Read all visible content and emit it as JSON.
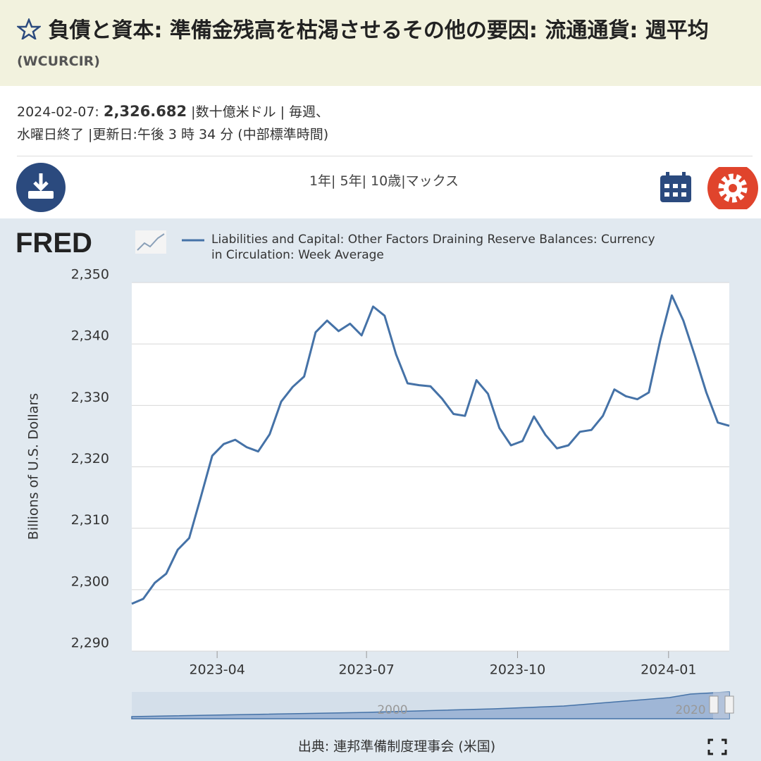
{
  "header": {
    "title": "負債と資本: 準備金残高を枯渇させるその他の要因: 流通通貨: 週平均",
    "code": "(WCURCIR)"
  },
  "meta": {
    "date": "2024-02-07:",
    "value": "2,326.682",
    "line1_rest": "|数十億米ドル | 毎週、",
    "line2": "水曜日終了 |更新日:午後 3 時 34 分 (中部標準時間)"
  },
  "toolbar": {
    "ranges": "1年| 5年| 10歳|マックス"
  },
  "logo": "FRED",
  "chart_data": {
    "type": "line",
    "y_label": "Billions of U.S. Dollars",
    "x": [
      "2023-02-08",
      "2023-02-15",
      "2023-02-22",
      "2023-03-01",
      "2023-03-08",
      "2023-03-15",
      "2023-03-22",
      "2023-03-29",
      "2023-04-05",
      "2023-04-12",
      "2023-04-19",
      "2023-04-26",
      "2023-05-03",
      "2023-05-10",
      "2023-05-17",
      "2023-05-24",
      "2023-05-31",
      "2023-06-07",
      "2023-06-14",
      "2023-06-21",
      "2023-06-28",
      "2023-07-05",
      "2023-07-12",
      "2023-07-19",
      "2023-07-26",
      "2023-08-02",
      "2023-08-09",
      "2023-08-16",
      "2023-08-23",
      "2023-08-30",
      "2023-09-06",
      "2023-09-13",
      "2023-09-20",
      "2023-09-27",
      "2023-10-04",
      "2023-10-11",
      "2023-10-18",
      "2023-10-25",
      "2023-11-01",
      "2023-11-08",
      "2023-11-15",
      "2023-11-22",
      "2023-11-29",
      "2023-12-06",
      "2023-12-13",
      "2023-12-20",
      "2023-12-27",
      "2024-01-03",
      "2024-01-10",
      "2024-01-17",
      "2024-01-24",
      "2024-01-31",
      "2024-02-07"
    ],
    "series": [
      {
        "name": "Liabilities and Capital: Other Factors Draining Reserve Balances: Currency in Circulation: Week Average",
        "color": "#4572a7",
        "values": [
          2297.7,
          2298.5,
          2301.1,
          2302.6,
          2306.5,
          2308.4,
          2315.0,
          2321.8,
          2323.7,
          2324.4,
          2323.2,
          2322.5,
          2325.3,
          2330.6,
          2333.0,
          2334.7,
          2341.9,
          2343.8,
          2342.1,
          2343.3,
          2341.4,
          2346.1,
          2344.6,
          2338.3,
          2333.6,
          2333.3,
          2333.1,
          2331.1,
          2328.6,
          2328.3,
          2334.1,
          2331.9,
          2326.3,
          2323.5,
          2324.2,
          2328.2,
          2325.2,
          2323.0,
          2323.5,
          2325.7,
          2326.0,
          2328.3,
          2332.6,
          2331.5,
          2331.0,
          2332.1,
          2340.7,
          2347.9,
          2343.8,
          2338.1,
          2332.1,
          2327.2,
          2326.682
        ]
      }
    ],
    "xlim": [
      "2023-02-08",
      "2024-02-07"
    ],
    "xticks": [
      "2023-04",
      "2023-07",
      "2023-10",
      "2024-01"
    ],
    "ylim": [
      2290,
      2350
    ],
    "yticks": [
      {
        "value": 2290,
        "label": "2,290"
      },
      {
        "value": 2300,
        "label": "2,300"
      },
      {
        "value": 2310,
        "label": "2,310"
      },
      {
        "value": 2320,
        "label": "2,320"
      },
      {
        "value": 2330,
        "label": "2,330"
      },
      {
        "value": 2340,
        "label": "2,340"
      },
      {
        "value": 2350,
        "label": "2,350"
      }
    ],
    "grid": true,
    "navigator_labels": [
      "2000",
      "2020"
    ]
  },
  "footer": {
    "source": "出典: 連邦準備制度理事会 (米国)"
  }
}
